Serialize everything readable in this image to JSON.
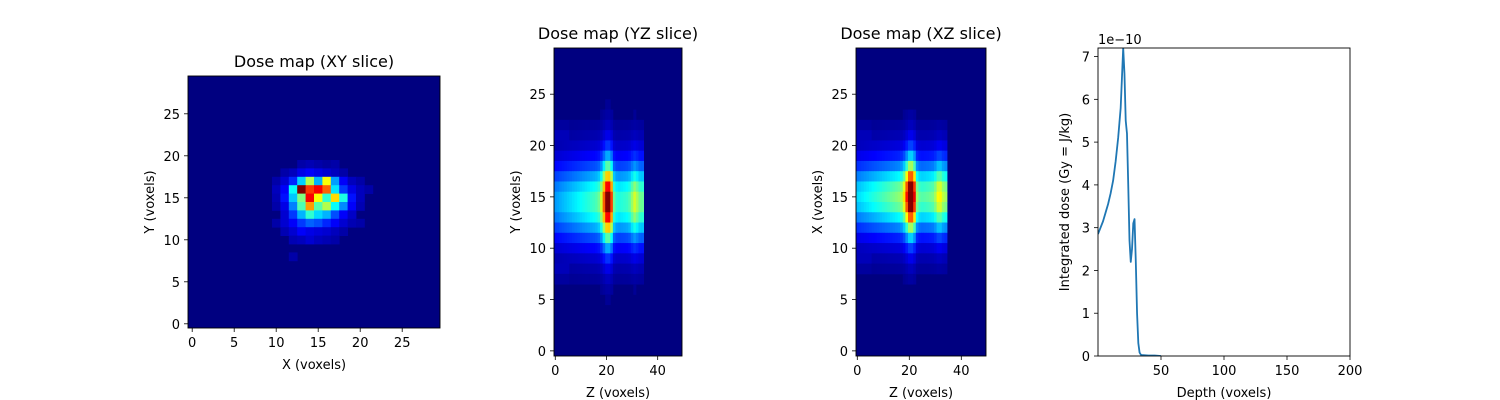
{
  "colors": {
    "line": "#1f77b4",
    "axes": "#000000",
    "background": "#ffffff"
  },
  "chart_data": [
    {
      "type": "heatmap",
      "title": "Dose map (XY slice)",
      "xlabel": "X (voxels)",
      "ylabel": "Y (voxels)",
      "colormap": "jet",
      "nx": 30,
      "ny": 30,
      "xlim": [
        -0.5,
        29.5
      ],
      "ylim": [
        29.5,
        -0.5
      ],
      "xticks": [
        0,
        5,
        10,
        15,
        20,
        25
      ],
      "yticks": [
        0,
        5,
        10,
        15,
        20,
        25
      ],
      "cells": [
        [
          12,
          21,
          0.04
        ],
        [
          13,
          10,
          0.04
        ],
        [
          14,
          10,
          0.05
        ],
        [
          15,
          10,
          0.04
        ],
        [
          16,
          10,
          0.03
        ],
        [
          17,
          10,
          0.04
        ],
        [
          12,
          11,
          0.06
        ],
        [
          13,
          11,
          0.1
        ],
        [
          14,
          11,
          0.12
        ],
        [
          15,
          11,
          0.1
        ],
        [
          16,
          11,
          0.08
        ],
        [
          17,
          11,
          0.06
        ],
        [
          18,
          11,
          0.04
        ],
        [
          11,
          11,
          0.04
        ],
        [
          10,
          12,
          0.04
        ],
        [
          11,
          12,
          0.08
        ],
        [
          12,
          12,
          0.16
        ],
        [
          13,
          12,
          0.33
        ],
        [
          14,
          12,
          0.55
        ],
        [
          15,
          12,
          0.3
        ],
        [
          16,
          12,
          0.62
        ],
        [
          17,
          12,
          0.28
        ],
        [
          18,
          12,
          0.12
        ],
        [
          19,
          12,
          0.06
        ],
        [
          20,
          12,
          0.04
        ],
        [
          10,
          13,
          0.06
        ],
        [
          11,
          13,
          0.12
        ],
        [
          12,
          13,
          0.38
        ],
        [
          13,
          13,
          1.0
        ],
        [
          14,
          13,
          0.82
        ],
        [
          15,
          13,
          0.88
        ],
        [
          16,
          13,
          0.78
        ],
        [
          17,
          13,
          0.35
        ],
        [
          18,
          13,
          0.18
        ],
        [
          19,
          13,
          0.1
        ],
        [
          20,
          13,
          0.06
        ],
        [
          21,
          13,
          0.04
        ],
        [
          10,
          14,
          0.05
        ],
        [
          11,
          14,
          0.14
        ],
        [
          12,
          14,
          0.32
        ],
        [
          13,
          14,
          0.5
        ],
        [
          14,
          14,
          0.88
        ],
        [
          15,
          14,
          0.62
        ],
        [
          16,
          14,
          0.42
        ],
        [
          17,
          14,
          0.66
        ],
        [
          18,
          14,
          0.4
        ],
        [
          19,
          14,
          0.14
        ],
        [
          20,
          14,
          0.06
        ],
        [
          10,
          15,
          0.04
        ],
        [
          11,
          15,
          0.1
        ],
        [
          12,
          15,
          0.25
        ],
        [
          13,
          15,
          0.45
        ],
        [
          14,
          15,
          0.72
        ],
        [
          15,
          15,
          0.46
        ],
        [
          16,
          15,
          0.55
        ],
        [
          17,
          15,
          0.38
        ],
        [
          18,
          15,
          0.26
        ],
        [
          19,
          15,
          0.12
        ],
        [
          20,
          15,
          0.05
        ],
        [
          11,
          16,
          0.08
        ],
        [
          12,
          16,
          0.18
        ],
        [
          13,
          16,
          0.3
        ],
        [
          14,
          16,
          0.42
        ],
        [
          15,
          16,
          0.34
        ],
        [
          16,
          16,
          0.3
        ],
        [
          17,
          16,
          0.2
        ],
        [
          18,
          16,
          0.12
        ],
        [
          19,
          16,
          0.07
        ],
        [
          10,
          17,
          0.04
        ],
        [
          11,
          17,
          0.08
        ],
        [
          12,
          17,
          0.12
        ],
        [
          13,
          17,
          0.18
        ],
        [
          14,
          17,
          0.22
        ],
        [
          15,
          17,
          0.2
        ],
        [
          16,
          17,
          0.16
        ],
        [
          17,
          17,
          0.12
        ],
        [
          18,
          17,
          0.08
        ],
        [
          19,
          17,
          0.05
        ],
        [
          20,
          17,
          0.04
        ],
        [
          11,
          18,
          0.05
        ],
        [
          12,
          18,
          0.08
        ],
        [
          13,
          18,
          0.12
        ],
        [
          14,
          18,
          0.1
        ],
        [
          15,
          18,
          0.09
        ],
        [
          16,
          18,
          0.08
        ],
        [
          17,
          18,
          0.06
        ],
        [
          18,
          18,
          0.04
        ],
        [
          12,
          19,
          0.05
        ],
        [
          13,
          19,
          0.06
        ],
        [
          14,
          19,
          0.08
        ],
        [
          15,
          19,
          0.06
        ],
        [
          16,
          19,
          0.05
        ],
        [
          17,
          19,
          0.04
        ]
      ]
    },
    {
      "type": "heatmap",
      "title": "Dose map (YZ slice)",
      "xlabel": "Z (voxels)",
      "ylabel": "Y (voxels)",
      "colormap": "jet",
      "nx": 50,
      "ny": 30,
      "xlim": [
        -0.5,
        49.5
      ],
      "ylim": [
        29.5,
        -0.5
      ],
      "xticks": [
        0,
        20,
        40
      ],
      "yticks": [
        0,
        5,
        10,
        15,
        20,
        25
      ],
      "field": {
        "center": 14.5,
        "core_half_width": 3.5,
        "halo_half_width": 6,
        "peak_z": 20.5,
        "secondary_z": 31,
        "tail_end_z": 34,
        "entrance_level": 0.28
      }
    },
    {
      "type": "heatmap",
      "title": "Dose map (XZ slice)",
      "xlabel": "Z (voxels)",
      "ylabel": "X (voxels)",
      "colormap": "jet",
      "nx": 50,
      "ny": 30,
      "xlim": [
        -0.5,
        49.5
      ],
      "ylim": [
        29.5,
        -0.5
      ],
      "xticks": [
        0,
        20,
        40
      ],
      "yticks": [
        0,
        5,
        10,
        15,
        20,
        25
      ],
      "field": {
        "center": 14,
        "core_half_width": 3.2,
        "halo_half_width": 5.5,
        "peak_z": 20.5,
        "secondary_z": 31.5,
        "tail_end_z": 34,
        "entrance_level": 0.34
      }
    },
    {
      "type": "line",
      "title": "",
      "xlabel": "Depth (voxels)",
      "ylabel": "Integrated dose (Gy = J/kg)",
      "offset_text": "1e−10",
      "xlim": [
        0,
        200
      ],
      "ylim": [
        0,
        7.2
      ],
      "xticks": [
        50,
        100,
        150,
        200
      ],
      "yticks": [
        0,
        1,
        2,
        3,
        4,
        5,
        6,
        7
      ],
      "series": [
        {
          "x": [
            0,
            2,
            4,
            6,
            8,
            10,
            12,
            14,
            16,
            17,
            18,
            19,
            20,
            21,
            22,
            23,
            24,
            25,
            26,
            27,
            28,
            29,
            30,
            31,
            32,
            33,
            34,
            35,
            36,
            40,
            45,
            50
          ],
          "y": [
            2.85,
            3.0,
            3.15,
            3.35,
            3.55,
            3.8,
            4.1,
            4.55,
            5.1,
            5.45,
            5.8,
            6.5,
            7.2,
            6.6,
            5.5,
            5.2,
            4.0,
            2.7,
            2.2,
            2.5,
            3.1,
            3.2,
            2.2,
            1.0,
            0.3,
            0.08,
            0.03,
            0.02,
            0.02,
            0.01,
            0.01,
            0.0
          ]
        }
      ]
    }
  ]
}
